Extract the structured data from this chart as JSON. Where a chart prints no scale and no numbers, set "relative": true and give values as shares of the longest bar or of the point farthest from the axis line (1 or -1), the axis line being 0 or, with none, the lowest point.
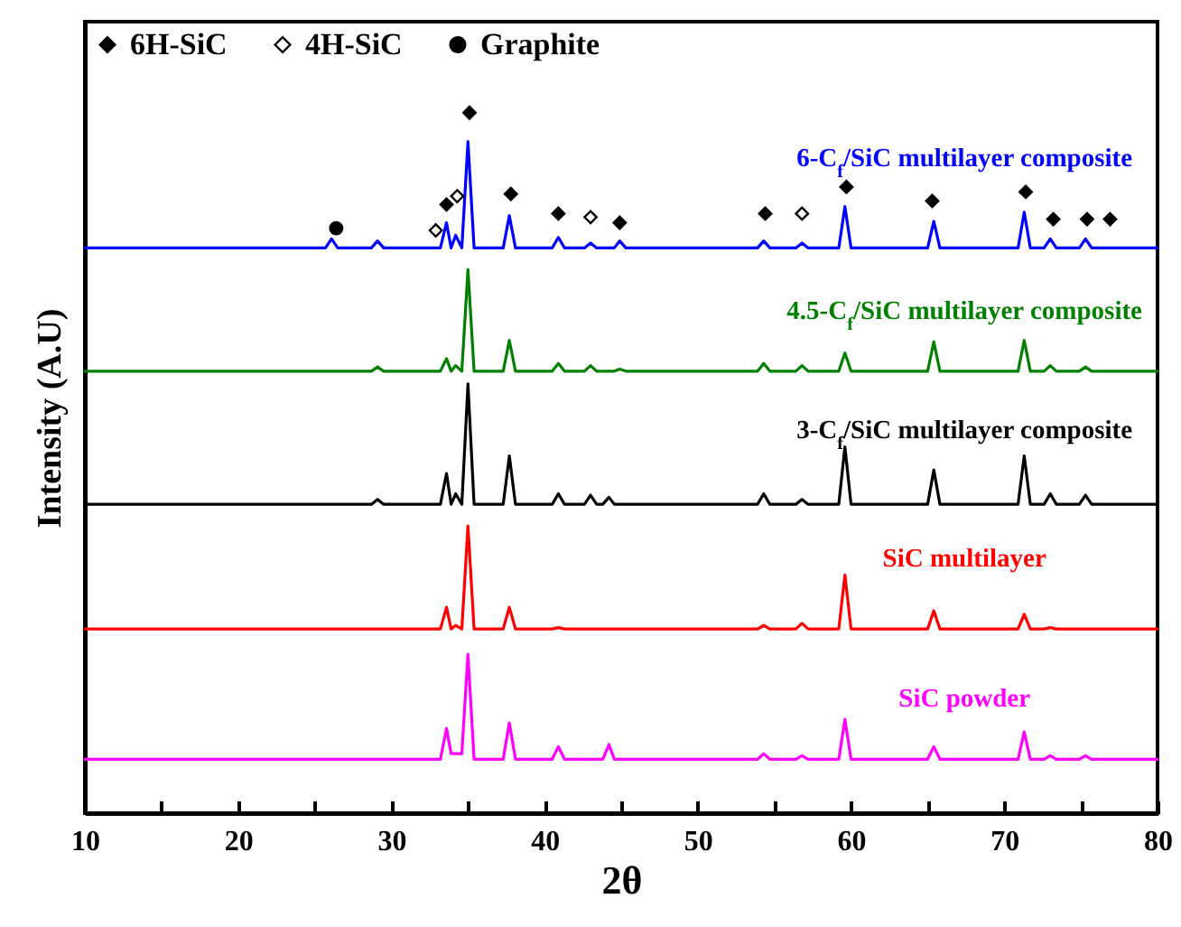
{
  "chart_data": {
    "type": "line",
    "xlabel": "2θ",
    "ylabel": "Intensity (A.U)",
    "relative": true,
    "grid": false,
    "legend": "top left",
    "xlim": [
      10,
      80
    ],
    "xticks": [
      10,
      {
        "value": 15,
        "label": null
      },
      20,
      {
        "value": 25,
        "label": null
      },
      30,
      {
        "value": 35,
        "label": null
      },
      40,
      {
        "value": 45,
        "label": null
      },
      50,
      {
        "value": 55,
        "label": null
      },
      60,
      {
        "value": 65,
        "label": null
      },
      70,
      {
        "value": 75,
        "label": null
      },
      80
    ],
    "x": [
      10,
      25.7,
      26.1,
      26.5,
      28.7,
      29.1,
      29.5,
      33.2,
      33.6,
      33.9,
      34.2,
      34.6,
      35.0,
      35.4,
      37.3,
      37.7,
      38.1,
      40.5,
      40.9,
      41.3,
      42.6,
      43.0,
      43.4,
      43.8,
      44.2,
      44.55,
      44.9,
      45.3,
      53.9,
      54.3,
      54.7,
      56.4,
      56.8,
      57.2,
      59.2,
      59.6,
      60.0,
      65.0,
      65.4,
      65.8,
      70.9,
      71.3,
      71.7,
      72.6,
      73.0,
      73.4,
      74.9,
      75.3,
      75.7,
      80
    ],
    "series": [
      {
        "name": "6-C$_{f}$/SiC multilayer composite",
        "color": "#0000ff",
        "values": [
          0.807,
          0.807,
          0.82,
          0.807,
          0.807,
          0.817,
          0.807,
          0.807,
          0.843,
          0.807,
          0.825,
          0.807,
          0.959,
          0.807,
          0.807,
          0.853,
          0.807,
          0.807,
          0.822,
          0.807,
          0.807,
          0.814,
          0.807,
          0.807,
          0.807,
          0.807,
          0.817,
          0.807,
          0.807,
          0.817,
          0.807,
          0.807,
          0.814,
          0.807,
          0.807,
          0.866,
          0.807,
          0.807,
          0.845,
          0.807,
          0.807,
          0.858,
          0.807,
          0.807,
          0.82,
          0.807,
          0.807,
          0.82,
          0.807,
          0.807
        ]
      },
      {
        "name": "4.5-C$_{f}$/SiC multilayer composite",
        "color": "#008000",
        "values": [
          0.631,
          0.631,
          0.631,
          0.631,
          0.631,
          0.637,
          0.631,
          0.631,
          0.649,
          0.631,
          0.639,
          0.631,
          0.776,
          0.631,
          0.631,
          0.675,
          0.631,
          0.631,
          0.642,
          0.631,
          0.631,
          0.639,
          0.631,
          0.631,
          0.631,
          0.631,
          0.634,
          0.631,
          0.631,
          0.642,
          0.631,
          0.631,
          0.639,
          0.631,
          0.631,
          0.657,
          0.631,
          0.631,
          0.673,
          0.631,
          0.631,
          0.675,
          0.631,
          0.631,
          0.639,
          0.631,
          0.631,
          0.637,
          0.631,
          0.631
        ]
      },
      {
        "name": "3-C$_{f}$/SiC multilayer composite",
        "color": "#000000",
        "values": [
          0.441,
          0.441,
          0.441,
          0.441,
          0.441,
          0.448,
          0.441,
          0.441,
          0.485,
          0.441,
          0.456,
          0.441,
          0.613,
          0.441,
          0.441,
          0.51,
          0.441,
          0.441,
          0.456,
          0.441,
          0.441,
          0.454,
          0.441,
          0.441,
          0.451,
          0.441,
          0.441,
          0.441,
          0.441,
          0.456,
          0.441,
          0.441,
          0.448,
          0.441,
          0.441,
          0.523,
          0.441,
          0.441,
          0.49,
          0.441,
          0.441,
          0.51,
          0.441,
          0.441,
          0.456,
          0.441,
          0.441,
          0.454,
          0.441,
          0.441
        ]
      },
      {
        "name": "SiC multilayer",
        "color": "#ff0000",
        "values": [
          0.263,
          0.263,
          0.263,
          0.263,
          0.263,
          0.263,
          0.263,
          0.263,
          0.294,
          0.263,
          0.268,
          0.263,
          0.41,
          0.263,
          0.263,
          0.294,
          0.263,
          0.263,
          0.265,
          0.263,
          0.263,
          0.263,
          0.263,
          0.263,
          0.263,
          0.263,
          0.263,
          0.263,
          0.263,
          0.268,
          0.263,
          0.263,
          0.271,
          0.263,
          0.263,
          0.34,
          0.263,
          0.263,
          0.289,
          0.263,
          0.263,
          0.284,
          0.263,
          0.263,
          0.265,
          0.263,
          0.263,
          0.263,
          0.263,
          0.263
        ]
      },
      {
        "name": "SiC powder",
        "color": "#ff00ff",
        "values": [
          0.077,
          0.077,
          0.077,
          0.077,
          0.077,
          0.077,
          0.077,
          0.077,
          0.121,
          0.085,
          0.085,
          0.085,
          0.227,
          0.077,
          0.077,
          0.129,
          0.077,
          0.077,
          0.095,
          0.077,
          0.077,
          0.077,
          0.077,
          0.077,
          0.098,
          0.077,
          0.077,
          0.077,
          0.077,
          0.085,
          0.077,
          0.077,
          0.082,
          0.077,
          0.077,
          0.134,
          0.077,
          0.077,
          0.095,
          0.077,
          0.077,
          0.116,
          0.077,
          0.077,
          0.082,
          0.077,
          0.077,
          0.082,
          0.077,
          0.077
        ]
      },
      {
        "name": "6H-SiC",
        "type": "scatter",
        "marker": "diamond",
        "color": "#000000",
        "x": [
          33.6,
          35.1,
          37.8,
          40.9,
          44.9,
          54.4,
          59.7,
          65.3,
          71.4,
          73.2,
          75.4,
          76.9
        ],
        "values": [
          0.869,
          1,
          0.884,
          0.856,
          0.843,
          0.856,
          0.894,
          0.874,
          0.887,
          0.848,
          0.848,
          0.848
        ]
      },
      {
        "name": "4H-SiC",
        "type": "scatter",
        "marker": "diamond",
        "color": "#ffffff",
        "x": [
          32.9,
          34.3,
          43.0,
          56.8
        ],
        "values": [
          0.832,
          0.881,
          0.851,
          0.856
        ]
      },
      {
        "name": "Graphite",
        "type": "scatter",
        "marker": "circle",
        "color": "#000000",
        "x": [
          26.4
        ],
        "values": [
          0.835
        ]
      }
    ]
  }
}
